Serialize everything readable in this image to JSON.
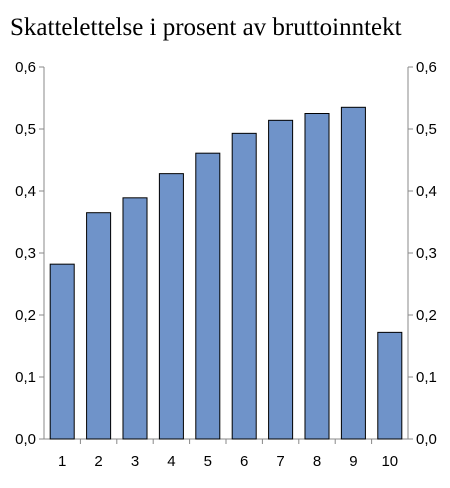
{
  "chart_data": {
    "type": "bar",
    "title": "Skattelettelse i prosent av bruttoinntekt",
    "xlabel": "",
    "ylabel": "",
    "categories": [
      "1",
      "2",
      "3",
      "4",
      "5",
      "6",
      "7",
      "8",
      "9",
      "10"
    ],
    "values": [
      0.282,
      0.365,
      0.389,
      0.428,
      0.461,
      0.493,
      0.514,
      0.525,
      0.535,
      0.172
    ],
    "ylim": [
      0,
      0.6
    ],
    "yticks": [
      "0,0",
      "0,1",
      "0,2",
      "0,3",
      "0,4",
      "0,5",
      "0,6"
    ],
    "right_axis": true,
    "grid": false,
    "colors": {
      "bar_fill": "#6f93c9",
      "bar_stroke": "#000000",
      "axis": "#888888"
    }
  }
}
